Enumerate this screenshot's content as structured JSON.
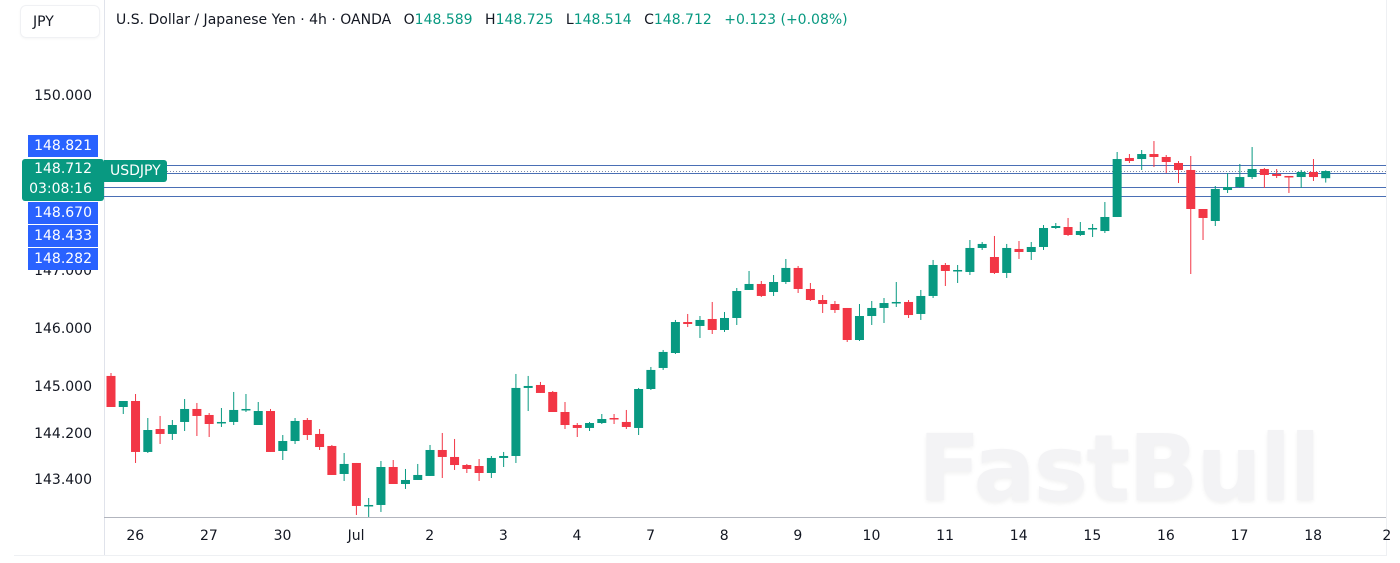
{
  "header": {
    "currency": "JPY",
    "title": "U.S. Dollar / Japanese Yen · 4h · OANDA",
    "ohlc": {
      "o_label": "O",
      "o": "148.589",
      "h_label": "H",
      "h": "148.725",
      "l_label": "L",
      "l": "148.514",
      "c_label": "C",
      "c": "148.712",
      "change": "+0.123 (+0.08%)"
    }
  },
  "price_badges": {
    "line_1": "148.821",
    "current": "148.712",
    "countdown": "03:08:16",
    "line_2": "148.670",
    "line_3": "148.433",
    "line_4": "148.282",
    "symbol": "USDJPY"
  },
  "watermark": "FastBull",
  "colors": {
    "up": "#089981",
    "down": "#f23645",
    "line": "#4a6fb5",
    "badge_blue": "#2962ff"
  },
  "chart_data": {
    "type": "candlestick",
    "title": "U.S. Dollar / Japanese Yen · 4h · OANDA",
    "symbol": "USDJPY",
    "interval": "4h",
    "xlabel": "",
    "ylabel": "JPY",
    "ylim": [
      142.77,
      151.55
    ],
    "grid": false,
    "y_ticks": [
      "150.000",
      "147.000",
      "146.000",
      "145.000",
      "144.200",
      "143.400"
    ],
    "x_ticks": [
      {
        "label": "26",
        "index": 1
      },
      {
        "label": "27",
        "index": 7
      },
      {
        "label": "30",
        "index": 13
      },
      {
        "label": "Jul",
        "index": 19
      },
      {
        "label": "2",
        "index": 25
      },
      {
        "label": "3",
        "index": 31
      },
      {
        "label": "4",
        "index": 37
      },
      {
        "label": "7",
        "index": 43
      },
      {
        "label": "8",
        "index": 49
      },
      {
        "label": "9",
        "index": 55
      },
      {
        "label": "10",
        "index": 61
      },
      {
        "label": "11",
        "index": 67
      },
      {
        "label": "14",
        "index": 73
      },
      {
        "label": "15",
        "index": 79
      },
      {
        "label": "16",
        "index": 85
      },
      {
        "label": "17",
        "index": 91
      },
      {
        "label": "18",
        "index": 97
      },
      {
        "label": "2",
        "index": 103
      }
    ],
    "horizontal_lines": [
      {
        "price": 148.821,
        "style": "solid"
      },
      {
        "price": 148.712,
        "style": "dotted"
      },
      {
        "price": 148.67,
        "style": "solid"
      },
      {
        "price": 148.433,
        "style": "solid"
      },
      {
        "price": 148.282,
        "style": "solid"
      }
    ],
    "candles": [
      {
        "o": 145.194,
        "h": 145.245,
        "l": 144.661,
        "c": 144.661
      },
      {
        "o": 144.661,
        "h": 144.764,
        "l": 144.541,
        "c": 144.764
      },
      {
        "o": 144.764,
        "h": 144.884,
        "l": 143.7,
        "c": 143.889
      },
      {
        "o": 143.889,
        "h": 144.472,
        "l": 143.871,
        "c": 144.266
      },
      {
        "o": 144.283,
        "h": 144.507,
        "l": 144.026,
        "c": 144.198
      },
      {
        "o": 144.198,
        "h": 144.438,
        "l": 144.095,
        "c": 144.352
      },
      {
        "o": 144.404,
        "h": 144.798,
        "l": 144.249,
        "c": 144.627
      },
      {
        "o": 144.627,
        "h": 144.73,
        "l": 144.163,
        "c": 144.507
      },
      {
        "o": 144.524,
        "h": 144.558,
        "l": 144.146,
        "c": 144.369
      },
      {
        "o": 144.386,
        "h": 144.644,
        "l": 144.318,
        "c": 144.404
      },
      {
        "o": 144.404,
        "h": 144.919,
        "l": 144.352,
        "c": 144.61
      },
      {
        "o": 144.61,
        "h": 144.884,
        "l": 144.575,
        "c": 144.627
      },
      {
        "o": 144.352,
        "h": 144.747,
        "l": 144.352,
        "c": 144.592
      },
      {
        "o": 144.592,
        "h": 144.627,
        "l": 143.889,
        "c": 143.889
      },
      {
        "o": 143.906,
        "h": 144.18,
        "l": 143.751,
        "c": 144.077
      },
      {
        "o": 144.077,
        "h": 144.472,
        "l": 144.026,
        "c": 144.421
      },
      {
        "o": 144.438,
        "h": 144.472,
        "l": 144.095,
        "c": 144.18
      },
      {
        "o": 144.198,
        "h": 144.283,
        "l": 143.923,
        "c": 143.974
      },
      {
        "o": 143.992,
        "h": 144.009,
        "l": 143.494,
        "c": 143.494
      },
      {
        "o": 143.511,
        "h": 143.871,
        "l": 143.391,
        "c": 143.683
      },
      {
        "o": 143.7,
        "h": 143.7,
        "l": 142.807,
        "c": 142.962
      },
      {
        "o": 142.962,
        "h": 143.099,
        "l": 142.773,
        "c": 142.979
      },
      {
        "o": 142.979,
        "h": 143.734,
        "l": 142.859,
        "c": 143.631
      },
      {
        "o": 143.631,
        "h": 143.751,
        "l": 143.339,
        "c": 143.339
      },
      {
        "o": 143.339,
        "h": 143.597,
        "l": 143.254,
        "c": 143.408
      },
      {
        "o": 143.408,
        "h": 143.683,
        "l": 143.408,
        "c": 143.494
      },
      {
        "o": 143.477,
        "h": 144.009,
        "l": 143.477,
        "c": 143.923
      },
      {
        "o": 143.923,
        "h": 144.215,
        "l": 143.442,
        "c": 143.803
      },
      {
        "o": 143.803,
        "h": 144.112,
        "l": 143.58,
        "c": 143.665
      },
      {
        "o": 143.665,
        "h": 143.683,
        "l": 143.528,
        "c": 143.597
      },
      {
        "o": 143.648,
        "h": 143.768,
        "l": 143.391,
        "c": 143.528
      },
      {
        "o": 143.528,
        "h": 143.82,
        "l": 143.442,
        "c": 143.786
      },
      {
        "o": 143.786,
        "h": 143.889,
        "l": 143.631,
        "c": 143.82
      },
      {
        "o": 143.82,
        "h": 145.228,
        "l": 143.7,
        "c": 144.988
      },
      {
        "o": 144.988,
        "h": 145.194,
        "l": 144.592,
        "c": 145.022
      },
      {
        "o": 145.039,
        "h": 145.091,
        "l": 144.902,
        "c": 144.902
      },
      {
        "o": 144.919,
        "h": 144.936,
        "l": 144.575,
        "c": 144.575
      },
      {
        "o": 144.575,
        "h": 144.747,
        "l": 144.283,
        "c": 144.352
      },
      {
        "o": 144.352,
        "h": 144.386,
        "l": 144.146,
        "c": 144.301
      },
      {
        "o": 144.301,
        "h": 144.404,
        "l": 144.249,
        "c": 144.386
      },
      {
        "o": 144.386,
        "h": 144.541,
        "l": 144.369,
        "c": 144.455
      },
      {
        "o": 144.472,
        "h": 144.541,
        "l": 144.369,
        "c": 144.455
      },
      {
        "o": 144.404,
        "h": 144.61,
        "l": 144.283,
        "c": 144.318
      },
      {
        "o": 144.301,
        "h": 144.988,
        "l": 144.18,
        "c": 144.97
      },
      {
        "o": 144.97,
        "h": 145.348,
        "l": 144.953,
        "c": 145.297
      },
      {
        "o": 145.331,
        "h": 145.64,
        "l": 145.297,
        "c": 145.606
      },
      {
        "o": 145.588,
        "h": 146.155,
        "l": 145.571,
        "c": 146.12
      },
      {
        "o": 146.12,
        "h": 146.258,
        "l": 146.034,
        "c": 146.086
      },
      {
        "o": 146.052,
        "h": 146.223,
        "l": 145.846,
        "c": 146.155
      },
      {
        "o": 146.172,
        "h": 146.464,
        "l": 145.914,
        "c": 145.983
      },
      {
        "o": 145.983,
        "h": 146.292,
        "l": 145.949,
        "c": 146.189
      },
      {
        "o": 146.189,
        "h": 146.704,
        "l": 146.069,
        "c": 146.652
      },
      {
        "o": 146.67,
        "h": 146.996,
        "l": 146.67,
        "c": 146.773
      },
      {
        "o": 146.773,
        "h": 146.824,
        "l": 146.55,
        "c": 146.567
      },
      {
        "o": 146.635,
        "h": 146.927,
        "l": 146.567,
        "c": 146.807
      },
      {
        "o": 146.807,
        "h": 147.202,
        "l": 146.773,
        "c": 147.048
      },
      {
        "o": 147.048,
        "h": 147.082,
        "l": 146.618,
        "c": 146.687
      },
      {
        "o": 146.687,
        "h": 146.79,
        "l": 146.481,
        "c": 146.498
      },
      {
        "o": 146.498,
        "h": 146.584,
        "l": 146.275,
        "c": 146.429
      },
      {
        "o": 146.429,
        "h": 146.481,
        "l": 146.275,
        "c": 146.326
      },
      {
        "o": 146.361,
        "h": 146.361,
        "l": 145.777,
        "c": 145.811
      },
      {
        "o": 145.811,
        "h": 146.429,
        "l": 145.794,
        "c": 146.223
      },
      {
        "o": 146.223,
        "h": 146.481,
        "l": 146.069,
        "c": 146.361
      },
      {
        "o": 146.361,
        "h": 146.532,
        "l": 146.103,
        "c": 146.446
      },
      {
        "o": 146.446,
        "h": 146.807,
        "l": 146.378,
        "c": 146.464
      },
      {
        "o": 146.464,
        "h": 146.498,
        "l": 146.189,
        "c": 146.24
      },
      {
        "o": 146.258,
        "h": 146.67,
        "l": 146.155,
        "c": 146.567
      },
      {
        "o": 146.567,
        "h": 147.185,
        "l": 146.532,
        "c": 147.099
      },
      {
        "o": 147.099,
        "h": 147.133,
        "l": 146.738,
        "c": 146.996
      },
      {
        "o": 146.996,
        "h": 147.099,
        "l": 146.79,
        "c": 147.013
      },
      {
        "o": 146.979,
        "h": 147.528,
        "l": 146.927,
        "c": 147.391
      },
      {
        "o": 147.391,
        "h": 147.494,
        "l": 147.357,
        "c": 147.46
      },
      {
        "o": 147.236,
        "h": 147.597,
        "l": 146.944,
        "c": 146.962
      },
      {
        "o": 146.962,
        "h": 147.46,
        "l": 146.876,
        "c": 147.391
      },
      {
        "o": 147.374,
        "h": 147.511,
        "l": 147.202,
        "c": 147.322
      },
      {
        "o": 147.322,
        "h": 147.494,
        "l": 147.185,
        "c": 147.408
      },
      {
        "o": 147.408,
        "h": 147.785,
        "l": 147.357,
        "c": 147.734
      },
      {
        "o": 147.734,
        "h": 147.82,
        "l": 147.717,
        "c": 147.768
      },
      {
        "o": 147.751,
        "h": 147.906,
        "l": 147.597,
        "c": 147.614
      },
      {
        "o": 147.614,
        "h": 147.837,
        "l": 147.597,
        "c": 147.682
      },
      {
        "o": 147.717,
        "h": 147.803,
        "l": 147.579,
        "c": 147.734
      },
      {
        "o": 147.682,
        "h": 148.18,
        "l": 147.648,
        "c": 147.923
      },
      {
        "o": 147.923,
        "h": 149.039,
        "l": 147.923,
        "c": 148.918
      },
      {
        "o": 148.936,
        "h": 149.004,
        "l": 148.85,
        "c": 148.884
      },
      {
        "o": 148.918,
        "h": 149.073,
        "l": 148.73,
        "c": 149.004
      },
      {
        "o": 149.004,
        "h": 149.227,
        "l": 148.781,
        "c": 148.953
      },
      {
        "o": 148.953,
        "h": 148.987,
        "l": 148.678,
        "c": 148.867
      },
      {
        "o": 148.85,
        "h": 148.884,
        "l": 148.506,
        "c": 148.73
      },
      {
        "o": 148.73,
        "h": 148.97,
        "l": 146.944,
        "c": 148.06
      },
      {
        "o": 148.06,
        "h": 148.06,
        "l": 147.528,
        "c": 147.906
      },
      {
        "o": 147.854,
        "h": 148.455,
        "l": 147.768,
        "c": 148.404
      },
      {
        "o": 148.386,
        "h": 148.678,
        "l": 148.335,
        "c": 148.438
      },
      {
        "o": 148.438,
        "h": 148.833,
        "l": 148.421,
        "c": 148.609
      },
      {
        "o": 148.609,
        "h": 149.124,
        "l": 148.575,
        "c": 148.747
      },
      {
        "o": 148.747,
        "h": 148.764,
        "l": 148.421,
        "c": 148.644
      },
      {
        "o": 148.661,
        "h": 148.747,
        "l": 148.592,
        "c": 148.627
      },
      {
        "o": 148.627,
        "h": 148.627,
        "l": 148.335,
        "c": 148.609
      },
      {
        "o": 148.609,
        "h": 148.73,
        "l": 148.421,
        "c": 148.696
      },
      {
        "o": 148.696,
        "h": 148.918,
        "l": 148.541,
        "c": 148.609
      },
      {
        "o": 148.589,
        "h": 148.725,
        "l": 148.514,
        "c": 148.712
      }
    ]
  }
}
